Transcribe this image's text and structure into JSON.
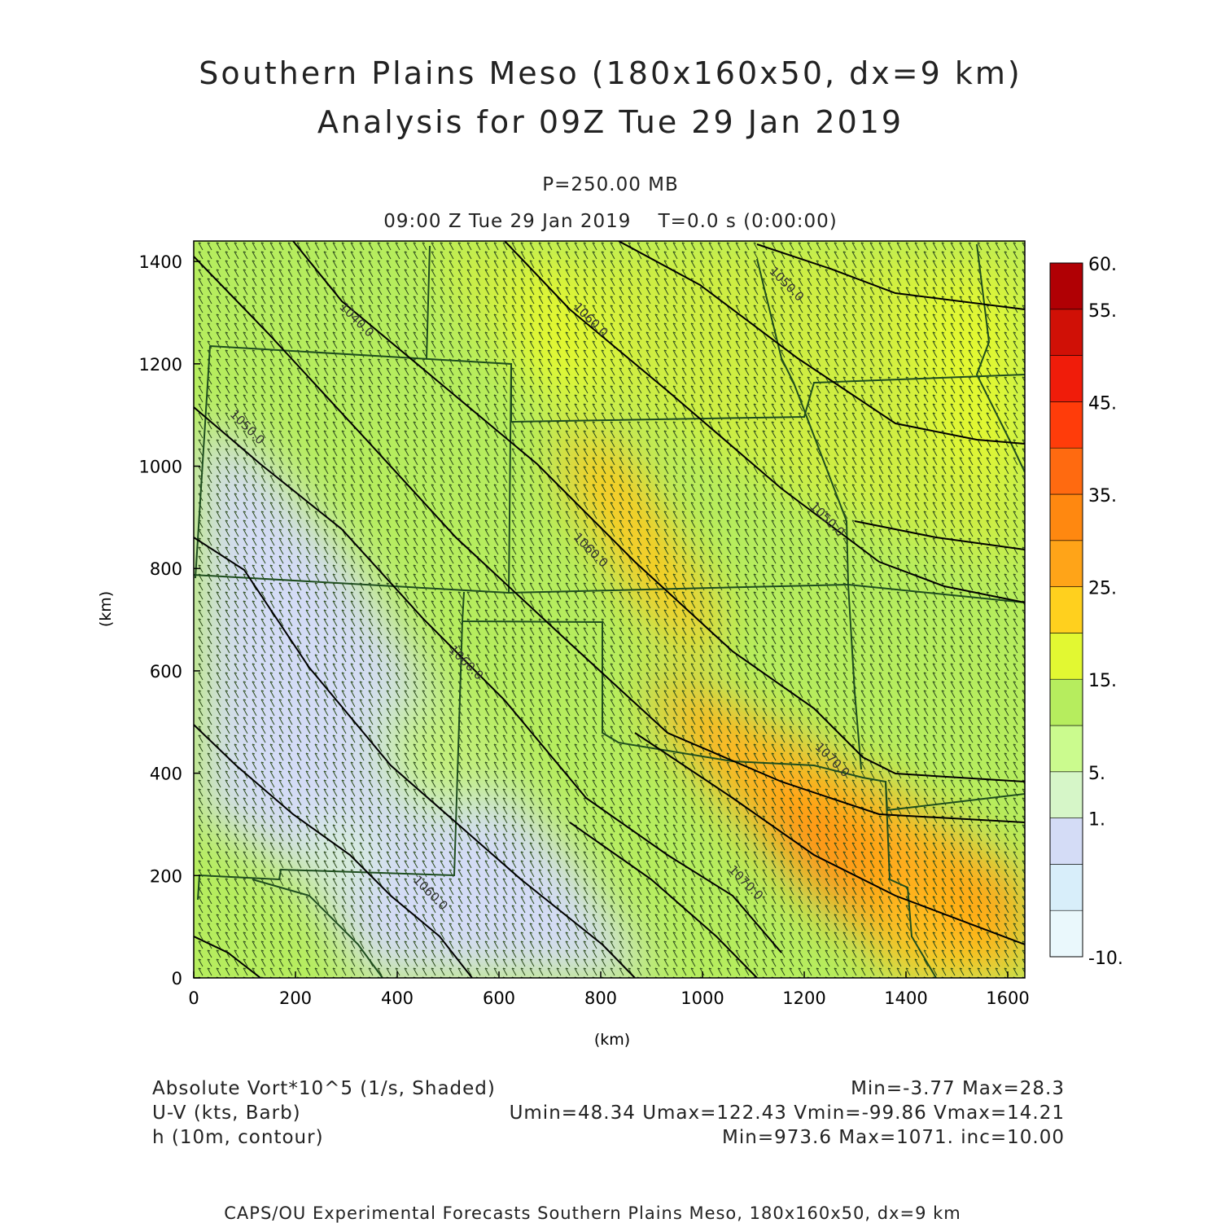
{
  "header": {
    "title_line1": "Southern Plains Meso (180x160x50, dx=9 km)",
    "title_line2": "Analysis for 09Z Tue 29 Jan 2019",
    "level": "P=250.00 MB",
    "time": "09:00 Z Tue 29 Jan 2019    T=0.0 s (0:00:00)"
  },
  "chart_data": {
    "type": "heatmap",
    "xlabel": "(km)",
    "ylabel": "(km)",
    "xlim": [
      0,
      1620
    ],
    "ylim": [
      0,
      1440
    ],
    "xticks": [
      0,
      200,
      400,
      600,
      800,
      1000,
      1200,
      1400,
      1600
    ],
    "yticks": [
      0,
      200,
      400,
      600,
      800,
      1000,
      1200,
      1400
    ],
    "colorbar": {
      "levels": [
        -10,
        -5,
        0,
        1,
        5,
        10,
        15,
        20,
        25,
        30,
        35,
        40,
        45,
        50,
        55,
        60
      ],
      "labels": [
        "-10.",
        "1.",
        "5.",
        "15.",
        "25.",
        "35.",
        "45.",
        "55.",
        "60."
      ],
      "label_values": [
        -10,
        1,
        5,
        15,
        25,
        35,
        45,
        55,
        60
      ],
      "colors": [
        "#eaf8fc",
        "#d8eefa",
        "#d4dcf6",
        "#d6f6c8",
        "#cbfb8e",
        "#b6ed5e",
        "#e2f832",
        "#ffd01e",
        "#ffa418",
        "#ff8810",
        "#ff6a10",
        "#ff3c0a",
        "#f01c0a",
        "#d01006",
        "#b00004"
      ]
    },
    "contour_labels": [
      {
        "text": "1040.0",
        "x": 285,
        "y": 1310
      },
      {
        "text": "1050.0",
        "x": 70,
        "y": 1100
      },
      {
        "text": "1060.0",
        "x": 745,
        "y": 860
      },
      {
        "text": "1060.0",
        "x": 500,
        "y": 640
      },
      {
        "text": "1060.0",
        "x": 745,
        "y": 1310
      },
      {
        "text": "1050.0",
        "x": 1130,
        "y": 1380
      },
      {
        "text": "1050.0",
        "x": 1210,
        "y": 920
      },
      {
        "text": "1070.0",
        "x": 1220,
        "y": 450
      },
      {
        "text": "1070.0",
        "x": 1050,
        "y": 210
      },
      {
        "text": "1060.0",
        "x": 430,
        "y": 190
      }
    ],
    "vorticity_stats": {
      "label": "Absolute Vort*10^5 (1/s, Shaded)",
      "min": -3.77,
      "max": 28.3,
      "text": "Min=-3.77 Max=28.3"
    },
    "wind_stats": {
      "label": "U-V (kts, Barb)",
      "umin": 48.34,
      "umax": 122.43,
      "vmin": -99.86,
      "vmax": 14.21,
      "text": "Umin=48.34 Umax=122.43 Vmin=-99.86 Vmax=14.21"
    },
    "height_stats": {
      "label": "h (10m, contour)",
      "min": 973.6,
      "max": 1071,
      "inc": 10.0,
      "text": "Min=973.6 Max=1071. inc=10.00"
    }
  },
  "footer": {
    "credit": "CAPS/OU Experimental Forecasts  Southern Plains Meso, 180x160x50, dx=9 km"
  }
}
